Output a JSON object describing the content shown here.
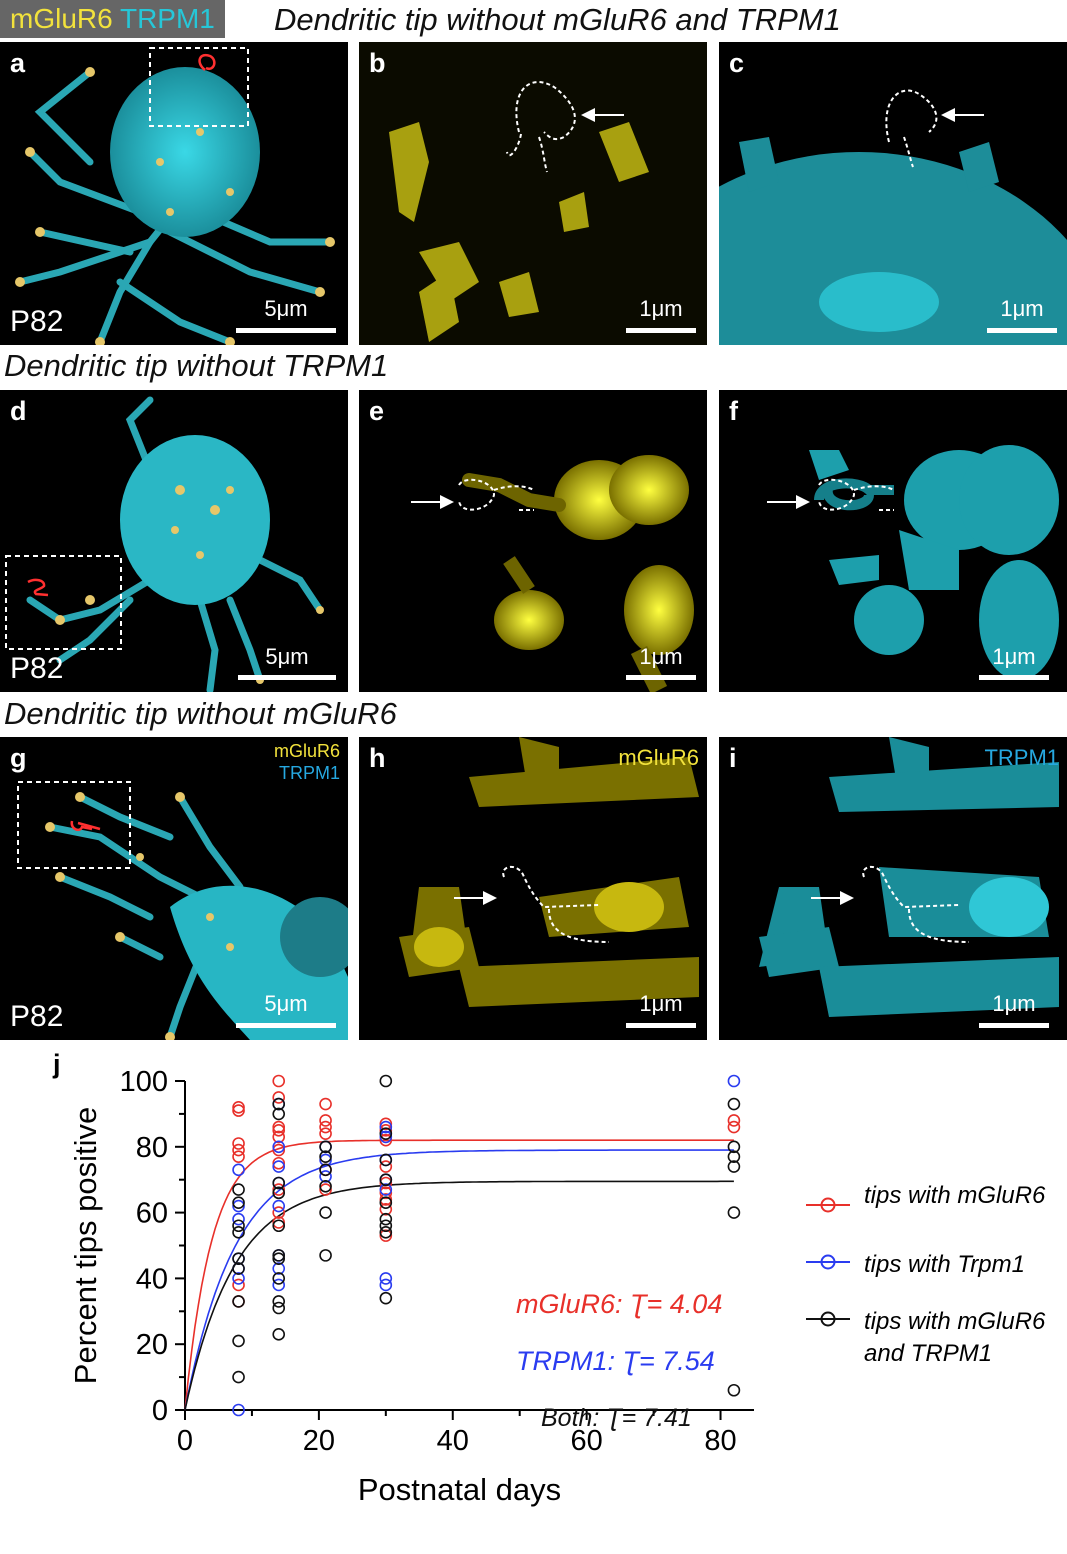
{
  "header": {
    "legend_mglur6": "mGluR6",
    "legend_trpm1": "TRPM1",
    "legend_mglur6_color": "#f2e23c",
    "legend_trpm1_color": "#26c7d8",
    "row1_title": "Dendritic tip without mGluR6 and TRPM1",
    "row2_title": "Dendritic tip without TRPM1",
    "row3_title": "Dendritic tip without mGluR6"
  },
  "panels": {
    "a": {
      "label": "a",
      "age": "P82",
      "scale": "5μm"
    },
    "b": {
      "label": "b",
      "scale": "1μm"
    },
    "c": {
      "label": "c",
      "scale": "1μm"
    },
    "d": {
      "label": "d",
      "age": "P82",
      "scale": "5μm"
    },
    "e": {
      "label": "e",
      "scale": "1μm"
    },
    "f": {
      "label": "f",
      "scale": "1μm"
    },
    "g": {
      "label": "g",
      "age": "P82",
      "scale": "5μm",
      "ch1": "mGluR6",
      "ch2": "TRPM1"
    },
    "h": {
      "label": "h",
      "scale": "1μm",
      "channel": "mGluR6"
    },
    "i": {
      "label": "i",
      "scale": "1μm",
      "channel": "TRPM1"
    }
  },
  "chart_data": {
    "panel_label": "j",
    "type": "scatter",
    "xlabel": "Postnatal days",
    "ylabel": "Percent tips positive",
    "xlim": [
      0,
      85
    ],
    "ylim": [
      0,
      100
    ],
    "xticks": [
      0,
      20,
      40,
      60,
      80
    ],
    "yticks": [
      0,
      20,
      40,
      60,
      80,
      100
    ],
    "series": [
      {
        "name": "tips with mGluR6",
        "color": "#e8302a",
        "x": [
          8,
          8,
          8,
          8,
          8,
          8,
          8,
          14,
          14,
          14,
          14,
          14,
          14,
          14,
          14,
          14,
          14,
          21,
          21,
          21,
          21,
          21,
          21,
          30,
          30,
          30,
          30,
          30,
          30,
          30,
          30,
          30,
          82,
          82
        ],
        "y": [
          92,
          91,
          81,
          79,
          77,
          38,
          33,
          100,
          95,
          86,
          85,
          83,
          79,
          75,
          67,
          60,
          57,
          93,
          88,
          86,
          84,
          73,
          67,
          87,
          85,
          82,
          74,
          69,
          66,
          64,
          61,
          53,
          88,
          86
        ],
        "fit": {
          "plateau": 82,
          "tau": 4.04
        }
      },
      {
        "name": "tips with Trpm1",
        "color": "#2a3cf0",
        "x": [
          8,
          8,
          8,
          8,
          8,
          8,
          8,
          14,
          14,
          14,
          14,
          14,
          14,
          14,
          14,
          21,
          21,
          21,
          30,
          30,
          30,
          30,
          30,
          30,
          30,
          82
        ],
        "y": [
          73,
          62,
          58,
          46,
          43,
          40,
          0,
          93,
          80,
          74,
          69,
          62,
          47,
          43,
          38,
          80,
          76,
          71,
          86,
          83,
          76,
          70,
          67,
          40,
          38,
          100
        ],
        "fit": {
          "plateau": 79,
          "tau": 7.54
        }
      },
      {
        "name": "tips with mGluR6 and TRPM1",
        "color": "#111111",
        "x": [
          8,
          8,
          8,
          8,
          8,
          8,
          8,
          8,
          8,
          14,
          14,
          14,
          14,
          14,
          14,
          14,
          14,
          14,
          14,
          14,
          21,
          21,
          21,
          21,
          21,
          21,
          30,
          30,
          30,
          30,
          30,
          30,
          30,
          30,
          30,
          82,
          82,
          82,
          82,
          82,
          82
        ],
        "y": [
          67,
          63,
          56,
          54,
          46,
          43,
          33,
          21,
          10,
          93,
          90,
          69,
          66,
          56,
          47,
          46,
          40,
          33,
          31,
          23,
          80,
          77,
          73,
          68,
          60,
          47,
          100,
          84,
          76,
          70,
          63,
          58,
          56,
          54,
          34,
          93,
          80,
          77,
          74,
          60,
          6
        ],
        "fit": {
          "plateau": 69.5,
          "tau": 7.41
        }
      }
    ],
    "legend": [
      "tips with mGluR6",
      "tips with Trpm1",
      "tips with mGluR6",
      "and TRPM1"
    ],
    "annotations": {
      "mglur6": "mGluR6: Ʈ= 4.04",
      "trpm1": "TRPM1: Ʈ= 7.54",
      "both": "Both: Ʈ= 7.41"
    }
  }
}
